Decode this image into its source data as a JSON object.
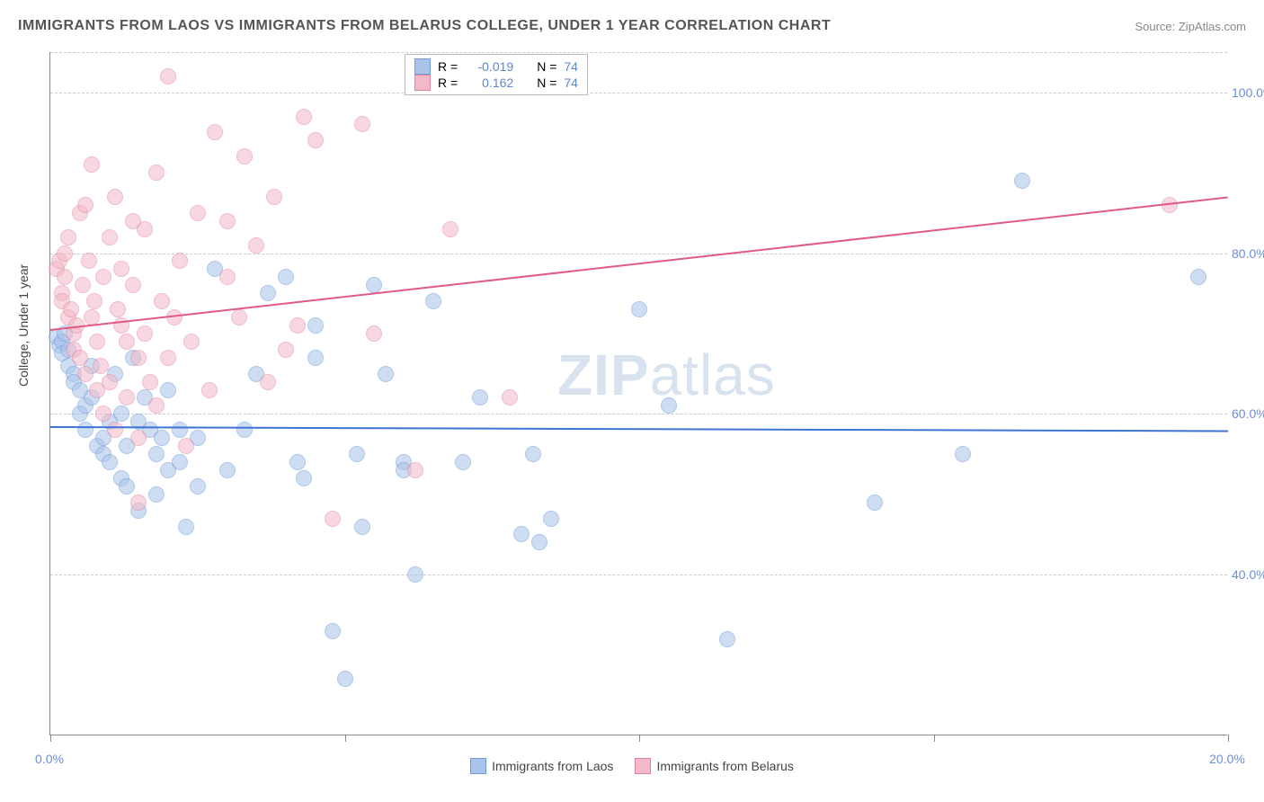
{
  "title": "IMMIGRANTS FROM LAOS VS IMMIGRANTS FROM BELARUS COLLEGE, UNDER 1 YEAR CORRELATION CHART",
  "source": "Source: ZipAtlas.com",
  "ylabel": "College, Under 1 year",
  "watermark_bold": "ZIP",
  "watermark_rest": "atlas",
  "chart": {
    "type": "scatter",
    "background_color": "#ffffff",
    "grid_color": "#cccccc",
    "axis_color": "#888888",
    "xlim": [
      0,
      20
    ],
    "ylim": [
      20,
      105
    ],
    "y_ticks": [
      40,
      60,
      80,
      100
    ],
    "y_tick_labels": [
      "40.0%",
      "60.0%",
      "80.0%",
      "100.0%"
    ],
    "x_ticks": [
      0,
      5,
      10,
      15,
      20
    ],
    "x_tick_labels_shown": {
      "0": "0.0%",
      "20": "20.0%"
    },
    "label_color": "#6a8fd8",
    "label_fontsize": 14,
    "title_fontsize": 16,
    "marker_radius": 9,
    "marker_opacity": 0.55,
    "series": [
      {
        "name": "Immigrants from Laos",
        "legend_label": "Immigrants from Laos",
        "color_fill": "#a9c3ea",
        "color_stroke": "#6f9bd8",
        "R": "-0.019",
        "N": "74",
        "regression": {
          "x1": 0,
          "y1": 58.5,
          "x2": 20,
          "y2": 58.0,
          "color": "#3d74d4",
          "width": 2
        },
        "points": [
          [
            0.1,
            69.5
          ],
          [
            0.15,
            68.5
          ],
          [
            0.2,
            69
          ],
          [
            0.2,
            67.5
          ],
          [
            0.25,
            70
          ],
          [
            0.3,
            66
          ],
          [
            0.3,
            68
          ],
          [
            0.4,
            65
          ],
          [
            0.4,
            64
          ],
          [
            0.5,
            63
          ],
          [
            0.5,
            60
          ],
          [
            0.6,
            61
          ],
          [
            0.6,
            58
          ],
          [
            0.7,
            62
          ],
          [
            0.7,
            66
          ],
          [
            0.8,
            56
          ],
          [
            0.9,
            55
          ],
          [
            0.9,
            57
          ],
          [
            1.0,
            59
          ],
          [
            1.0,
            54
          ],
          [
            1.1,
            65
          ],
          [
            1.2,
            60
          ],
          [
            1.2,
            52
          ],
          [
            1.3,
            51
          ],
          [
            1.3,
            56
          ],
          [
            1.4,
            67
          ],
          [
            1.5,
            59
          ],
          [
            1.5,
            48
          ],
          [
            1.6,
            62
          ],
          [
            1.7,
            58
          ],
          [
            1.8,
            55
          ],
          [
            1.8,
            50
          ],
          [
            1.9,
            57
          ],
          [
            2.0,
            53
          ],
          [
            2.0,
            63
          ],
          [
            2.2,
            54
          ],
          [
            2.2,
            58
          ],
          [
            2.3,
            46
          ],
          [
            2.5,
            51
          ],
          [
            2.5,
            57
          ],
          [
            2.8,
            78
          ],
          [
            3.0,
            53
          ],
          [
            3.3,
            58
          ],
          [
            3.5,
            65
          ],
          [
            3.7,
            75
          ],
          [
            4.0,
            77
          ],
          [
            4.2,
            54
          ],
          [
            4.3,
            52
          ],
          [
            4.5,
            71
          ],
          [
            4.5,
            67
          ],
          [
            4.8,
            33
          ],
          [
            5.0,
            27
          ],
          [
            5.2,
            55
          ],
          [
            5.3,
            46
          ],
          [
            5.5,
            76
          ],
          [
            5.7,
            65
          ],
          [
            6.0,
            54
          ],
          [
            6.0,
            53
          ],
          [
            6.2,
            40
          ],
          [
            6.5,
            74
          ],
          [
            7.0,
            54
          ],
          [
            7.3,
            62
          ],
          [
            8.0,
            45
          ],
          [
            8.2,
            55
          ],
          [
            8.3,
            44
          ],
          [
            8.5,
            47
          ],
          [
            10.0,
            73
          ],
          [
            10.5,
            61
          ],
          [
            11.5,
            32
          ],
          [
            14.0,
            49
          ],
          [
            15.5,
            55
          ],
          [
            16.5,
            89
          ],
          [
            19.5,
            77
          ]
        ]
      },
      {
        "name": "Immigrants from Belarus",
        "legend_label": "Immigrants from Belarus",
        "color_fill": "#f3b9c8",
        "color_stroke": "#e486a1",
        "R": "0.162",
        "N": "74",
        "regression": {
          "x1": 0,
          "y1": 70.5,
          "x2": 20,
          "y2": 87,
          "color": "#e05a86",
          "width": 2
        },
        "points": [
          [
            0.1,
            78
          ],
          [
            0.15,
            79
          ],
          [
            0.2,
            75
          ],
          [
            0.2,
            74
          ],
          [
            0.25,
            77
          ],
          [
            0.25,
            80
          ],
          [
            0.3,
            72
          ],
          [
            0.3,
            82
          ],
          [
            0.35,
            73
          ],
          [
            0.4,
            70
          ],
          [
            0.4,
            68
          ],
          [
            0.45,
            71
          ],
          [
            0.5,
            85
          ],
          [
            0.5,
            67
          ],
          [
            0.55,
            76
          ],
          [
            0.6,
            86
          ],
          [
            0.6,
            65
          ],
          [
            0.65,
            79
          ],
          [
            0.7,
            72
          ],
          [
            0.7,
            91
          ],
          [
            0.75,
            74
          ],
          [
            0.8,
            63
          ],
          [
            0.8,
            69
          ],
          [
            0.85,
            66
          ],
          [
            0.9,
            77
          ],
          [
            0.9,
            60
          ],
          [
            1.0,
            82
          ],
          [
            1.0,
            64
          ],
          [
            1.1,
            87
          ],
          [
            1.1,
            58
          ],
          [
            1.15,
            73
          ],
          [
            1.2,
            71
          ],
          [
            1.2,
            78
          ],
          [
            1.3,
            69
          ],
          [
            1.3,
            62
          ],
          [
            1.4,
            76
          ],
          [
            1.4,
            84
          ],
          [
            1.5,
            67
          ],
          [
            1.5,
            49
          ],
          [
            1.5,
            57
          ],
          [
            1.6,
            83
          ],
          [
            1.6,
            70
          ],
          [
            1.7,
            64
          ],
          [
            1.8,
            90
          ],
          [
            1.8,
            61
          ],
          [
            1.9,
            74
          ],
          [
            2.0,
            102
          ],
          [
            2.0,
            67
          ],
          [
            2.1,
            72
          ],
          [
            2.2,
            79
          ],
          [
            2.3,
            56
          ],
          [
            2.4,
            69
          ],
          [
            2.5,
            85
          ],
          [
            2.7,
            63
          ],
          [
            2.8,
            95
          ],
          [
            3.0,
            77
          ],
          [
            3.0,
            84
          ],
          [
            3.2,
            72
          ],
          [
            3.3,
            92
          ],
          [
            3.5,
            81
          ],
          [
            3.7,
            64
          ],
          [
            3.8,
            87
          ],
          [
            4.0,
            68
          ],
          [
            4.2,
            71
          ],
          [
            4.3,
            97
          ],
          [
            4.5,
            94
          ],
          [
            4.8,
            47
          ],
          [
            5.3,
            96
          ],
          [
            5.5,
            70
          ],
          [
            6.2,
            53
          ],
          [
            6.8,
            83
          ],
          [
            7.8,
            62
          ],
          [
            19.0,
            86
          ]
        ]
      }
    ]
  },
  "legend_top_prefix_R": "R =",
  "legend_top_prefix_N": "N ="
}
